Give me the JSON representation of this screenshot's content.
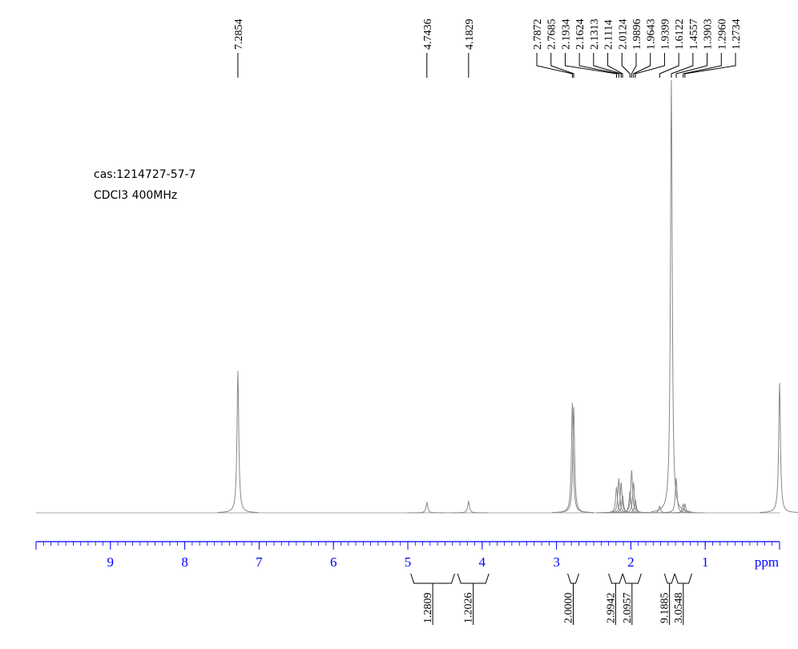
{
  "chart_data": {
    "type": "nmr",
    "annotations": [
      "cas:1214727-57-7",
      "CDCl3 400MHz"
    ],
    "x_label": "ppm",
    "xlim": [
      10,
      0
    ],
    "xticks": [
      9,
      8,
      7,
      6,
      5,
      4,
      3,
      2,
      1
    ],
    "xminor_step": 0.1,
    "ylim": [
      0,
      100
    ],
    "color": "#888888",
    "axis_color": "#0000ff",
    "peaks": {
      "x": [
        7.2854,
        4.7436,
        4.1829,
        2.7872,
        2.7685,
        2.1934,
        2.1624,
        2.1313,
        2.1114,
        2.0124,
        1.9896,
        1.9643,
        1.9399,
        1.6122,
        1.4557,
        1.3903,
        {
          "value": 1.296,
          "label": "1.2960"
        },
        1.2734
      ],
      "values": [
        32.8,
        2.4,
        2.6,
        25.4,
        24.4,
        6,
        8,
        7,
        4,
        5,
        9.8,
        7,
        3,
        1.5,
        100,
        8,
        2,
        2
      ]
    },
    "reference_peak": {
      "x": 0,
      "value": 30
    },
    "integrals": {
      "ranges": [
        [
          4.96,
          4.37
        ],
        [
          4.33,
          3.91
        ],
        [
          2.85,
          2.7
        ],
        [
          2.3,
          2.11
        ],
        [
          2.11,
          1.86
        ],
        [
          1.55,
          1.41
        ],
        [
          1.41,
          1.18
        ]
      ],
      "values": [
        1.2809,
        1.2026,
        2,
        2.9942,
        2.0957,
        9.1885,
        3.0548
      ],
      "value_labels": [
        "1.2809",
        "1.2026",
        "2.0000",
        "2.9942",
        "2.0957",
        "9.1885",
        "3.0548"
      ]
    }
  }
}
